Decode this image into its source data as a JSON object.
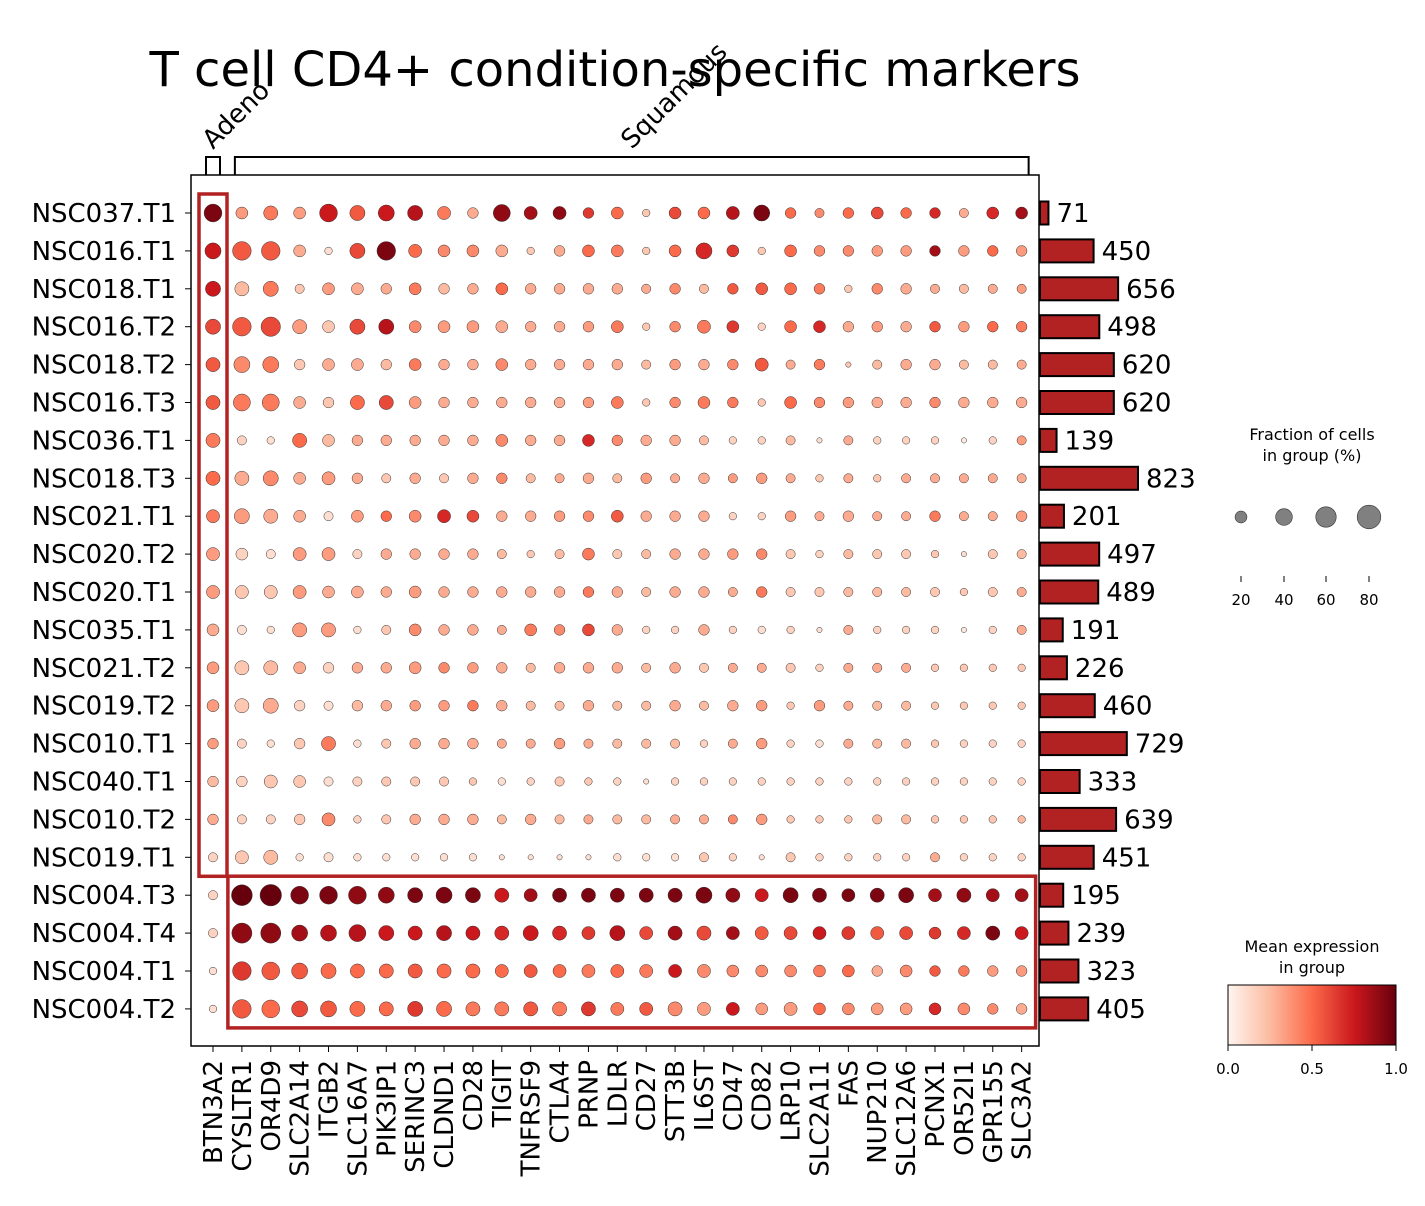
{
  "chart_data": {
    "type": "dotplot",
    "title": "T cell CD4+ condition-specific markers",
    "genes": [
      "BTN3A2",
      "CYSLTR1",
      "OR4D9",
      "SLC2A14",
      "ITGB2",
      "SLC16A7",
      "PIK3IP1",
      "SERINC3",
      "CLDND1",
      "CD28",
      "TIGIT",
      "TNFRSF9",
      "CTLA4",
      "PRNP",
      "LDLR",
      "CD27",
      "STT3B",
      "IL6ST",
      "CD47",
      "CD82",
      "LRP10",
      "SLC2A11",
      "FAS",
      "NUP210",
      "SLC12A6",
      "PCNX1",
      "OR52I1",
      "GPR155",
      "SLC3A2"
    ],
    "groups": [
      "NSC037.T1",
      "NSC016.T1",
      "NSC018.T1",
      "NSC016.T2",
      "NSC018.T2",
      "NSC016.T3",
      "NSC036.T1",
      "NSC018.T3",
      "NSC021.T1",
      "NSC020.T2",
      "NSC020.T1",
      "NSC035.T1",
      "NSC021.T2",
      "NSC019.T2",
      "NSC010.T1",
      "NSC040.T1",
      "NSC010.T2",
      "NSC019.T1",
      "NSC004.T3",
      "NSC004.T4",
      "NSC004.T1",
      "NSC004.T2"
    ],
    "cell_counts": [
      71,
      450,
      656,
      498,
      620,
      620,
      139,
      823,
      201,
      497,
      489,
      191,
      226,
      460,
      729,
      333,
      639,
      451,
      195,
      239,
      323,
      405
    ],
    "gene_groups": [
      {
        "label": "Adeno",
        "start": 0,
        "end": 0
      },
      {
        "label": "Squamous",
        "start": 1,
        "end": 28
      }
    ],
    "highlight_boxes": [
      {
        "rows": [
          0,
          17
        ],
        "cols": [
          0,
          0
        ]
      },
      {
        "rows": [
          18,
          21
        ],
        "cols": [
          1,
          28
        ]
      }
    ],
    "size_legend": {
      "title": "Fraction of cells\nin group (%)",
      "values": [
        20,
        40,
        60,
        80
      ]
    },
    "color_legend": {
      "title": "Mean expression\nin group",
      "ticks": [
        "0.0",
        "0.5",
        "1.0"
      ],
      "colormap": [
        "#fff5f0",
        "#fcbba1",
        "#fb6a4a",
        "#cb181d",
        "#67000d"
      ]
    },
    "bar_color": "#b22222",
    "fraction": [
      [
        55,
        25,
        35,
        25,
        55,
        40,
        45,
        40,
        30,
        20,
        50,
        30,
        30,
        20,
        25,
        10,
        25,
        25,
        30,
        45,
        20,
        15,
        20,
        25,
        20,
        20,
        15,
        25,
        25
      ],
      [
        45,
        60,
        60,
        25,
        10,
        40,
        60,
        30,
        25,
        25,
        25,
        10,
        20,
        25,
        25,
        10,
        25,
        45,
        25,
        10,
        25,
        20,
        20,
        20,
        20,
        20,
        20,
        20,
        20
      ],
      [
        40,
        35,
        40,
        15,
        25,
        25,
        20,
        25,
        20,
        20,
        25,
        20,
        20,
        20,
        20,
        15,
        20,
        15,
        20,
        25,
        25,
        20,
        10,
        20,
        20,
        15,
        15,
        15,
        15
      ],
      [
        40,
        60,
        65,
        35,
        25,
        40,
        40,
        25,
        25,
        25,
        25,
        20,
        20,
        20,
        25,
        10,
        20,
        30,
        25,
        10,
        25,
        25,
        20,
        20,
        20,
        20,
        20,
        20,
        20
      ],
      [
        35,
        45,
        45,
        20,
        25,
        25,
        20,
        25,
        20,
        20,
        25,
        20,
        20,
        20,
        20,
        15,
        20,
        20,
        20,
        30,
        15,
        20,
        5,
        15,
        20,
        20,
        15,
        15,
        15
      ],
      [
        35,
        50,
        50,
        25,
        20,
        35,
        35,
        25,
        20,
        20,
        20,
        20,
        20,
        20,
        25,
        10,
        20,
        25,
        20,
        10,
        25,
        20,
        20,
        20,
        20,
        20,
        20,
        20,
        20
      ],
      [
        35,
        15,
        10,
        35,
        25,
        20,
        20,
        20,
        20,
        20,
        25,
        20,
        20,
        25,
        20,
        20,
        20,
        15,
        10,
        10,
        15,
        5,
        15,
        10,
        10,
        10,
        5,
        10,
        15
      ],
      [
        35,
        35,
        40,
        25,
        30,
        20,
        15,
        20,
        15,
        20,
        20,
        15,
        15,
        20,
        15,
        20,
        15,
        20,
        15,
        20,
        15,
        10,
        15,
        10,
        15,
        15,
        15,
        15,
        15
      ],
      [
        30,
        40,
        35,
        25,
        15,
        25,
        20,
        25,
        30,
        25,
        20,
        20,
        20,
        20,
        25,
        20,
        20,
        20,
        10,
        10,
        20,
        15,
        20,
        15,
        15,
        20,
        15,
        15,
        20
      ],
      [
        30,
        25,
        15,
        30,
        30,
        15,
        20,
        20,
        20,
        20,
        15,
        10,
        15,
        25,
        15,
        15,
        20,
        20,
        20,
        20,
        15,
        10,
        15,
        15,
        15,
        10,
        5,
        15,
        15
      ],
      [
        30,
        30,
        30,
        30,
        25,
        25,
        20,
        25,
        20,
        20,
        20,
        20,
        20,
        20,
        20,
        15,
        20,
        20,
        15,
        20,
        15,
        15,
        15,
        15,
        15,
        15,
        10,
        15,
        15
      ],
      [
        25,
        15,
        10,
        35,
        35,
        10,
        15,
        25,
        20,
        20,
        15,
        25,
        20,
        25,
        20,
        10,
        10,
        20,
        10,
        10,
        10,
        5,
        15,
        10,
        10,
        10,
        5,
        10,
        15
      ],
      [
        25,
        35,
        35,
        25,
        20,
        20,
        20,
        25,
        20,
        20,
        20,
        15,
        20,
        20,
        20,
        15,
        20,
        15,
        15,
        15,
        15,
        10,
        15,
        15,
        15,
        10,
        10,
        10,
        10
      ],
      [
        25,
        35,
        40,
        20,
        15,
        20,
        20,
        20,
        20,
        20,
        20,
        15,
        15,
        20,
        15,
        15,
        20,
        15,
        20,
        20,
        10,
        20,
        15,
        15,
        15,
        10,
        10,
        10,
        10
      ],
      [
        20,
        15,
        10,
        20,
        35,
        10,
        15,
        20,
        20,
        20,
        15,
        15,
        20,
        15,
        15,
        15,
        15,
        10,
        15,
        20,
        10,
        10,
        15,
        15,
        15,
        10,
        10,
        10,
        10
      ],
      [
        20,
        20,
        30,
        25,
        15,
        15,
        15,
        15,
        15,
        10,
        10,
        10,
        15,
        10,
        10,
        5,
        10,
        10,
        10,
        10,
        10,
        10,
        10,
        10,
        10,
        10,
        10,
        10,
        10
      ],
      [
        20,
        15,
        15,
        20,
        30,
        10,
        15,
        20,
        20,
        20,
        15,
        20,
        15,
        15,
        15,
        15,
        15,
        15,
        15,
        20,
        10,
        10,
        10,
        15,
        15,
        10,
        10,
        10,
        10
      ],
      [
        15,
        30,
        35,
        10,
        15,
        10,
        10,
        10,
        10,
        10,
        5,
        5,
        5,
        5,
        10,
        10,
        10,
        15,
        10,
        5,
        15,
        10,
        10,
        10,
        10,
        15,
        10,
        10,
        10
      ],
      [
        15,
        75,
        80,
        55,
        55,
        55,
        45,
        40,
        45,
        40,
        35,
        30,
        35,
        35,
        35,
        35,
        35,
        45,
        35,
        30,
        40,
        35,
        30,
        35,
        40,
        30,
        35,
        30,
        30
      ],
      [
        15,
        70,
        70,
        45,
        45,
        50,
        40,
        35,
        40,
        35,
        35,
        40,
        35,
        30,
        40,
        30,
        35,
        35,
        30,
        30,
        30,
        30,
        30,
        30,
        30,
        25,
        30,
        35,
        30
      ],
      [
        10,
        60,
        55,
        45,
        40,
        35,
        35,
        35,
        35,
        35,
        30,
        30,
        30,
        30,
        30,
        30,
        30,
        30,
        25,
        25,
        25,
        25,
        25,
        20,
        25,
        20,
        20,
        20,
        20
      ],
      [
        10,
        60,
        55,
        45,
        45,
        40,
        35,
        40,
        40,
        35,
        35,
        35,
        35,
        35,
        30,
        30,
        35,
        30,
        30,
        25,
        30,
        25,
        25,
        25,
        25,
        25,
        25,
        20,
        20
      ]
    ],
    "expression": [
      [
        0.95,
        0.35,
        0.45,
        0.35,
        0.75,
        0.55,
        0.75,
        0.8,
        0.45,
        0.3,
        0.9,
        0.85,
        0.9,
        0.65,
        0.5,
        0.2,
        0.6,
        0.5,
        0.8,
        0.95,
        0.5,
        0.4,
        0.5,
        0.6,
        0.5,
        0.7,
        0.3,
        0.7,
        0.85
      ],
      [
        0.75,
        0.55,
        0.55,
        0.3,
        0.1,
        0.6,
        0.95,
        0.5,
        0.4,
        0.4,
        0.3,
        0.2,
        0.3,
        0.5,
        0.45,
        0.2,
        0.5,
        0.7,
        0.65,
        0.2,
        0.5,
        0.4,
        0.4,
        0.35,
        0.35,
        0.85,
        0.35,
        0.5,
        0.35
      ],
      [
        0.75,
        0.25,
        0.45,
        0.2,
        0.35,
        0.3,
        0.3,
        0.45,
        0.25,
        0.3,
        0.5,
        0.3,
        0.3,
        0.3,
        0.3,
        0.3,
        0.4,
        0.25,
        0.55,
        0.55,
        0.5,
        0.45,
        0.2,
        0.4,
        0.3,
        0.3,
        0.25,
        0.3,
        0.35
      ],
      [
        0.6,
        0.55,
        0.6,
        0.35,
        0.2,
        0.6,
        0.8,
        0.4,
        0.35,
        0.35,
        0.3,
        0.3,
        0.3,
        0.35,
        0.45,
        0.2,
        0.4,
        0.45,
        0.65,
        0.15,
        0.5,
        0.7,
        0.3,
        0.35,
        0.3,
        0.55,
        0.35,
        0.5,
        0.45
      ],
      [
        0.55,
        0.4,
        0.45,
        0.2,
        0.3,
        0.3,
        0.25,
        0.45,
        0.3,
        0.3,
        0.4,
        0.3,
        0.3,
        0.3,
        0.3,
        0.25,
        0.35,
        0.3,
        0.4,
        0.55,
        0.3,
        0.45,
        0.2,
        0.25,
        0.3,
        0.3,
        0.25,
        0.25,
        0.3
      ],
      [
        0.55,
        0.45,
        0.45,
        0.3,
        0.2,
        0.5,
        0.6,
        0.35,
        0.3,
        0.3,
        0.3,
        0.3,
        0.3,
        0.35,
        0.45,
        0.2,
        0.4,
        0.45,
        0.45,
        0.2,
        0.5,
        0.4,
        0.35,
        0.3,
        0.3,
        0.4,
        0.3,
        0.3,
        0.3
      ],
      [
        0.45,
        0.15,
        0.1,
        0.5,
        0.25,
        0.3,
        0.3,
        0.3,
        0.3,
        0.3,
        0.4,
        0.3,
        0.3,
        0.7,
        0.4,
        0.3,
        0.3,
        0.25,
        0.15,
        0.15,
        0.25,
        0.1,
        0.3,
        0.15,
        0.15,
        0.15,
        0.05,
        0.15,
        0.35
      ],
      [
        0.5,
        0.3,
        0.4,
        0.3,
        0.35,
        0.3,
        0.2,
        0.3,
        0.2,
        0.3,
        0.4,
        0.25,
        0.3,
        0.3,
        0.25,
        0.35,
        0.3,
        0.3,
        0.35,
        0.35,
        0.3,
        0.2,
        0.3,
        0.2,
        0.3,
        0.3,
        0.3,
        0.3,
        0.3
      ],
      [
        0.45,
        0.35,
        0.3,
        0.3,
        0.1,
        0.35,
        0.5,
        0.4,
        0.7,
        0.6,
        0.3,
        0.3,
        0.35,
        0.4,
        0.55,
        0.3,
        0.3,
        0.3,
        0.15,
        0.15,
        0.35,
        0.3,
        0.3,
        0.3,
        0.3,
        0.45,
        0.3,
        0.3,
        0.35
      ],
      [
        0.35,
        0.15,
        0.1,
        0.35,
        0.35,
        0.15,
        0.3,
        0.3,
        0.3,
        0.3,
        0.25,
        0.2,
        0.25,
        0.45,
        0.2,
        0.25,
        0.3,
        0.3,
        0.35,
        0.4,
        0.2,
        0.15,
        0.25,
        0.2,
        0.2,
        0.2,
        0.1,
        0.2,
        0.25
      ],
      [
        0.35,
        0.2,
        0.2,
        0.35,
        0.3,
        0.3,
        0.3,
        0.35,
        0.3,
        0.3,
        0.3,
        0.3,
        0.3,
        0.45,
        0.3,
        0.25,
        0.3,
        0.3,
        0.3,
        0.45,
        0.2,
        0.2,
        0.25,
        0.25,
        0.25,
        0.2,
        0.2,
        0.2,
        0.3
      ],
      [
        0.3,
        0.1,
        0.1,
        0.35,
        0.35,
        0.1,
        0.2,
        0.4,
        0.3,
        0.3,
        0.3,
        0.45,
        0.4,
        0.6,
        0.3,
        0.15,
        0.15,
        0.3,
        0.15,
        0.1,
        0.15,
        0.1,
        0.3,
        0.15,
        0.15,
        0.15,
        0.05,
        0.15,
        0.3
      ],
      [
        0.35,
        0.2,
        0.25,
        0.3,
        0.15,
        0.3,
        0.3,
        0.35,
        0.4,
        0.35,
        0.3,
        0.25,
        0.3,
        0.3,
        0.3,
        0.25,
        0.3,
        0.2,
        0.3,
        0.3,
        0.2,
        0.15,
        0.3,
        0.3,
        0.3,
        0.2,
        0.2,
        0.2,
        0.2
      ],
      [
        0.35,
        0.2,
        0.3,
        0.15,
        0.1,
        0.25,
        0.3,
        0.35,
        0.35,
        0.45,
        0.3,
        0.25,
        0.25,
        0.3,
        0.25,
        0.25,
        0.3,
        0.25,
        0.3,
        0.35,
        0.2,
        0.35,
        0.3,
        0.25,
        0.25,
        0.2,
        0.2,
        0.2,
        0.2
      ],
      [
        0.35,
        0.15,
        0.1,
        0.2,
        0.45,
        0.1,
        0.2,
        0.3,
        0.3,
        0.3,
        0.3,
        0.3,
        0.35,
        0.3,
        0.25,
        0.25,
        0.25,
        0.15,
        0.3,
        0.35,
        0.15,
        0.1,
        0.3,
        0.25,
        0.25,
        0.2,
        0.15,
        0.15,
        0.15
      ],
      [
        0.25,
        0.15,
        0.2,
        0.2,
        0.1,
        0.15,
        0.2,
        0.2,
        0.2,
        0.2,
        0.1,
        0.15,
        0.2,
        0.2,
        0.15,
        0.1,
        0.15,
        0.15,
        0.15,
        0.15,
        0.15,
        0.15,
        0.15,
        0.15,
        0.15,
        0.15,
        0.15,
        0.15,
        0.15
      ],
      [
        0.3,
        0.15,
        0.15,
        0.2,
        0.4,
        0.15,
        0.2,
        0.3,
        0.3,
        0.3,
        0.25,
        0.3,
        0.25,
        0.3,
        0.25,
        0.25,
        0.3,
        0.3,
        0.4,
        0.35,
        0.2,
        0.2,
        0.2,
        0.25,
        0.25,
        0.2,
        0.2,
        0.2,
        0.25
      ],
      [
        0.15,
        0.2,
        0.25,
        0.1,
        0.1,
        0.1,
        0.1,
        0.1,
        0.1,
        0.1,
        0.1,
        0.1,
        0.1,
        0.1,
        0.1,
        0.1,
        0.1,
        0.2,
        0.15,
        0.1,
        0.2,
        0.15,
        0.15,
        0.15,
        0.15,
        0.3,
        0.15,
        0.15,
        0.15
      ],
      [
        0.15,
        1.0,
        1.0,
        0.95,
        0.95,
        0.9,
        0.9,
        0.95,
        0.95,
        0.95,
        0.75,
        0.85,
        0.95,
        0.95,
        0.95,
        0.95,
        0.95,
        0.95,
        0.9,
        0.75,
        0.95,
        0.95,
        0.95,
        0.95,
        0.95,
        0.85,
        0.9,
        0.85,
        0.85
      ],
      [
        0.15,
        0.9,
        0.9,
        0.85,
        0.8,
        0.8,
        0.75,
        0.75,
        0.8,
        0.75,
        0.7,
        0.75,
        0.7,
        0.65,
        0.8,
        0.6,
        0.85,
        0.6,
        0.85,
        0.55,
        0.6,
        0.75,
        0.65,
        0.55,
        0.6,
        0.65,
        0.7,
        0.95,
        0.75
      ],
      [
        0.1,
        0.65,
        0.55,
        0.55,
        0.5,
        0.5,
        0.5,
        0.55,
        0.5,
        0.5,
        0.5,
        0.55,
        0.5,
        0.45,
        0.5,
        0.45,
        0.75,
        0.4,
        0.4,
        0.4,
        0.4,
        0.45,
        0.5,
        0.3,
        0.4,
        0.55,
        0.45,
        0.35,
        0.35
      ],
      [
        0.1,
        0.55,
        0.5,
        0.6,
        0.55,
        0.5,
        0.5,
        0.65,
        0.5,
        0.45,
        0.45,
        0.55,
        0.45,
        0.65,
        0.45,
        0.55,
        0.4,
        0.35,
        0.75,
        0.35,
        0.35,
        0.5,
        0.4,
        0.35,
        0.35,
        0.7,
        0.4,
        0.4,
        0.3
      ]
    ]
  }
}
